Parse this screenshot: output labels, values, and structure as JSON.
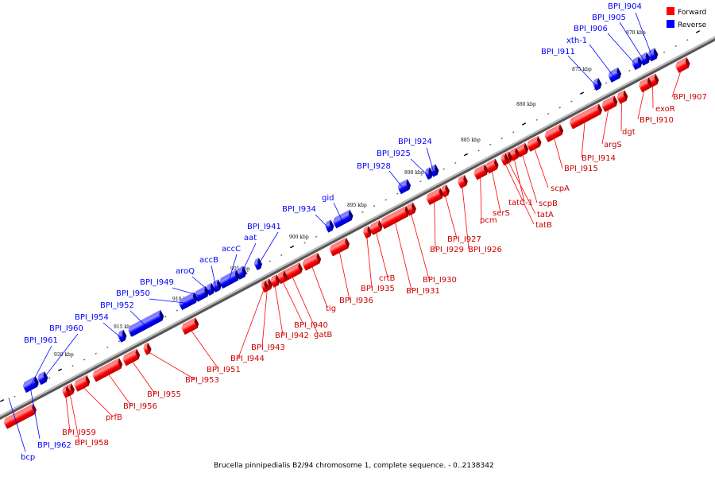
{
  "caption": "Brucella pinnipedialis B2/94 chromosome 1, complete sequence. - 0..2138342",
  "legend": {
    "forward_label": "Forward",
    "reverse_label": "Reverse",
    "forward_color": "#ff0000",
    "reverse_color": "#0000ff"
  },
  "colors": {
    "forward": "#ff0000",
    "reverse": "#0000ff",
    "backbone": "#888888"
  },
  "kbp_marks": [
    "870 kbp",
    "875 kbp",
    "880 kbp",
    "885 kbp",
    "890 kbp",
    "895 kbp",
    "900 kbp",
    "905 kbp",
    "910 kbp",
    "915 kbp",
    "920 kbp"
  ],
  "forward_genes": [
    "BPI_I907",
    "exoR",
    "BPI_I910",
    "dgt",
    "argS",
    "BPI_I914",
    "BPI_I915",
    "scpA",
    "scpB",
    "tatC-1",
    "tatA",
    "tatB",
    "serS",
    "pcm",
    "BPI_I926",
    "BPI_I927",
    "BPI_I929",
    "BPI_I930",
    "BPI_I931",
    "crtB",
    "BPI_I935",
    "BPI_I936",
    "tig",
    "gatB",
    "BPI_I940",
    "BPI_I942",
    "BPI_I943",
    "BPI_I944",
    "BPI_I951",
    "BPI_I953",
    "BPI_I955",
    "BPI_I956",
    "prfB",
    "BPI_I958",
    "BPI_I959"
  ],
  "reverse_genes": [
    "BPI_I904",
    "BPI_I905",
    "BPI_I906",
    "xth-1",
    "BPI_I911",
    "BPI_I924",
    "BPI_I925",
    "BPI_I928",
    "gid",
    "BPI_I934",
    "BPI_I941",
    "aat",
    "accC",
    "accB",
    "aroQ",
    "BPI_I949",
    "BPI_I950",
    "BPI_I952",
    "BPI_I954",
    "BPI_I960",
    "BPI_I961",
    "BPI_I962",
    "bcp"
  ]
}
